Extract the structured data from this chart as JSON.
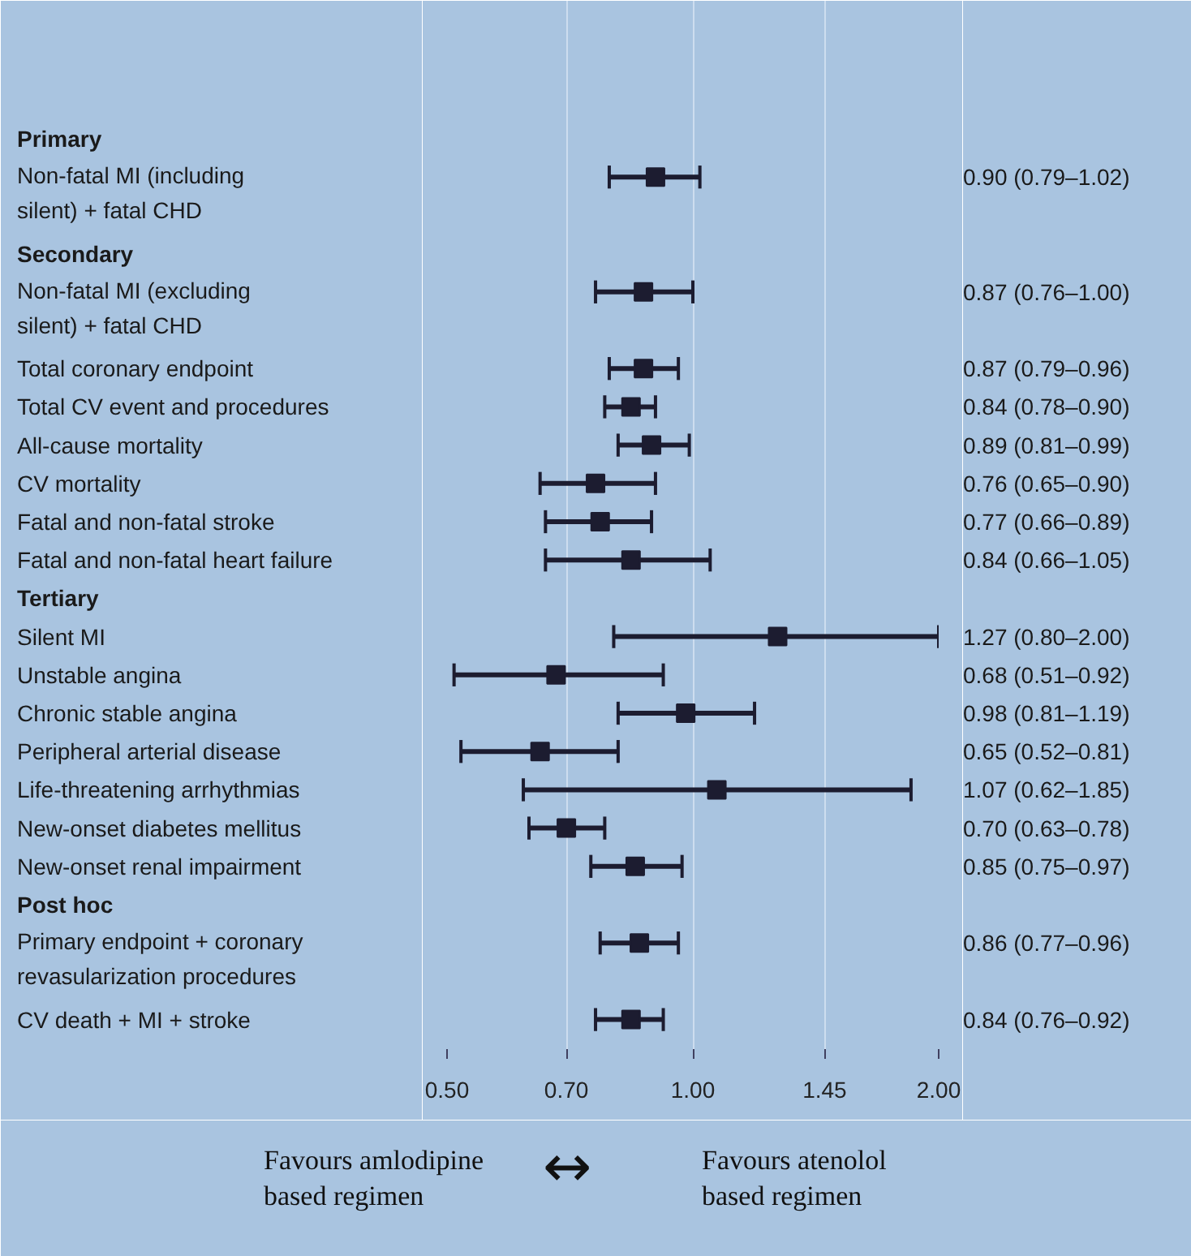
{
  "chart_data": {
    "type": "scatter",
    "orientation": "horizontal",
    "marker": "square",
    "color": "#1c1c30",
    "log": "x",
    "grid": "x",
    "categories": [
      "Primary",
      "Non-fatal MI (including silent) + fatal CHD",
      "Secondary",
      "Non-fatal MI (excluding silent) + fatal CHD",
      "Total coronary endpoint",
      "Total CV event and procedures",
      "All-cause mortality",
      "CV mortality",
      "Fatal and non-fatal stroke",
      "Fatal and non-fatal heart failure",
      "Tertiary",
      "Silent MI",
      "Unstable angina",
      "Chronic stable angina",
      "Peripheral arterial disease",
      "Life-threatening arrhythmias",
      "New-onset diabetes mellitus",
      "New-onset renal impairment",
      "Post hoc",
      "Primary endpoint + coronary revasularization procedures",
      "CV death + MI + stroke"
    ],
    "values": [
      null,
      0.9,
      null,
      0.87,
      0.87,
      0.84,
      0.89,
      0.76,
      0.77,
      0.84,
      null,
      1.27,
      0.68,
      0.98,
      0.65,
      1.07,
      0.7,
      0.85,
      null,
      0.86,
      0.84
    ],
    "errors": [
      null,
      [
        0.79,
        1.02
      ],
      null,
      [
        0.76,
        1.0
      ],
      [
        0.79,
        0.96
      ],
      [
        0.78,
        0.9
      ],
      [
        0.81,
        0.99
      ],
      [
        0.65,
        0.9
      ],
      [
        0.66,
        0.89
      ],
      [
        0.66,
        1.05
      ],
      null,
      [
        0.8,
        2.0
      ],
      [
        0.51,
        0.92
      ],
      [
        0.81,
        1.19
      ],
      [
        0.52,
        0.81
      ],
      [
        0.62,
        1.85
      ],
      [
        0.63,
        0.78
      ],
      [
        0.75,
        0.97
      ],
      null,
      [
        0.77,
        0.96
      ],
      [
        0.76,
        0.92
      ]
    ],
    "value_labels": [
      null,
      "0.90 (0.79–1.02)",
      null,
      "0.87 (0.76–1.00)",
      "0.87 (0.79–0.96)",
      "0.84 (0.78–0.90)",
      "0.89 (0.81–0.99)",
      "0.76 (0.65–0.90)",
      "0.77 (0.66–0.89)",
      "0.84 (0.66–1.05)",
      null,
      "1.27 (0.80–2.00)",
      "0.68 (0.51–0.92)",
      "0.98 (0.81–1.19)",
      "0.65 (0.52–0.81)",
      "1.07 (0.62–1.85)",
      "0.70 (0.63–0.78)",
      "0.85 (0.75–0.97)",
      null,
      "0.86 (0.77–0.96)",
      "0.84 (0.76–0.92)"
    ],
    "xlim": [
      0.5,
      2.0
    ],
    "xticks": [
      {
        "value": 0.5,
        "label": "0.50"
      },
      {
        "value": 0.7,
        "label": "0.70"
      },
      {
        "value": 1.0,
        "label": "1.00"
      },
      {
        "value": 1.45,
        "label": "1.45"
      },
      {
        "value": 2.0,
        "label": "2.00"
      }
    ],
    "annotations": [
      "Favours amlodipine based regimen",
      "↔",
      "Favours atenolol based regimen"
    ]
  }
}
